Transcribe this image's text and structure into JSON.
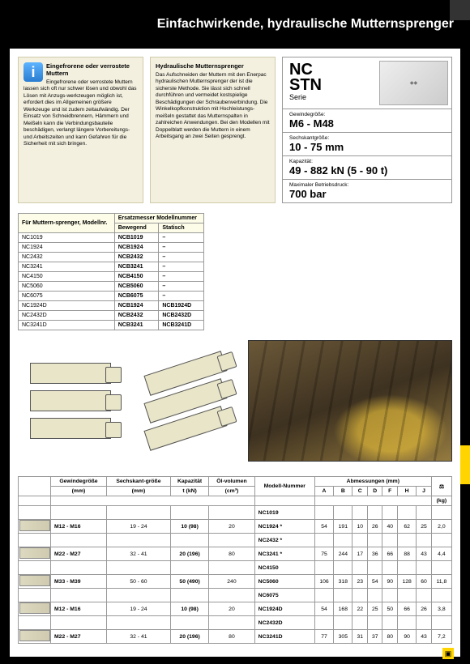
{
  "header": {
    "title": "Einfachwirkende, hydraulische Mutternsprenger"
  },
  "infoBox": {
    "heading": "Eingefrorene oder verrostete Muttern",
    "body": "Eingefrorene oder verrostete Muttern lassen sich oft nur schwer lösen und obwohl das Lösen mit Anzugs-werkzeugen möglich ist, erfordert dies im Allgemeinen größere Werkzeuge und ist zudem zeitaufwändig. Der Einsatz von Schneidbrennern, Hämmern und Meißeln kann die Verbindungsbauteile beschädigen, verlangt längere Vorbereitungs- und Arbeitszeiten und kann Gefahren für die Sicherheit mit sich bringen."
  },
  "hydraulicBox": {
    "heading": "Hydraulische Mutternsprenger",
    "body": "Das Aufschneiden der Muttern mit den Enerpac hydraulischen Mutternsprenger der ist die sicherste Methode. Sie lässt sich schnell durchführen und vermeidet kostspielige Beschädigungen der Schraubenverbindung. Die Winkelkopfkonstruktion mit Hochleistungs-meißeln gestattet das Mutternspalten in zahlreichen Anwendungen. Bei den Modellen mit Doppelblatt werden die Muttern in einem Arbeitsgang an zwei Seiten gesprengt."
  },
  "spec": {
    "series1": "NC",
    "series2": "STN",
    "seriesSub": "Serie",
    "rows": [
      {
        "label": "Gewindegröße:",
        "value": "M6 - M48"
      },
      {
        "label": "Sechskantgröße:",
        "value": "10 - 75 mm"
      },
      {
        "label": "Kapazität:",
        "value": "49 - 882 kN (5 - 90 t)"
      },
      {
        "label": "Maximaler Betriebsdruck:",
        "value": "700 bar"
      }
    ]
  },
  "modelTable": {
    "h1": "Für Muttern-sprenger, Modellnr.",
    "h2": "Ersatzmesser Modellnummer",
    "sub1": "Bewegend",
    "sub2": "Statisch",
    "rows": [
      [
        "NC1019",
        "NCB1019",
        "–"
      ],
      [
        "NC1924",
        "NCB1924",
        "–"
      ],
      [
        "NC2432",
        "NCB2432",
        "–"
      ],
      [
        "NC3241",
        "NCB3241",
        "–"
      ],
      [
        "NC4150",
        "NCB4150",
        "–"
      ],
      [
        "NC5060",
        "NCB5060",
        "–"
      ],
      [
        "NC6075",
        "NCB6075",
        "–"
      ],
      [
        "NC1924D",
        "NCB1924",
        "NCB1924D"
      ],
      [
        "NC2432D",
        "NCB2432",
        "NCB2432D"
      ],
      [
        "NC3241D",
        "NCB3241",
        "NCB3241D"
      ]
    ]
  },
  "bigTable": {
    "headers": {
      "gewinde": "Gewindegröße",
      "sechs": "Sechskant-größe",
      "kap": "Kapazität",
      "oil": "Öl-volumen",
      "model": "Modell-Nummer",
      "dims": "Abmessungen (mm)",
      "a": "A",
      "b": "B",
      "c": "C",
      "d": "D",
      "f": "F",
      "h": "H",
      "j": "J",
      "unitMm": "(mm)",
      "unitMm2": "(mm)",
      "unitKn": "t (kN)",
      "unitCm": "(cm³)",
      "unitKg": "(kg)"
    },
    "rows": [
      {
        "g": "",
        "s": "",
        "k": "",
        "o": "",
        "m": "NC1019",
        "a": "",
        "b": "",
        "c": "",
        "d": "",
        "f": "",
        "h": "",
        "j": "",
        "kg": ""
      },
      {
        "g": "M12 - M16",
        "s": "19 - 24",
        "k": "10 (98)",
        "o": "20",
        "m": "NC1924 *",
        "a": "54",
        "b": "191",
        "c": "10",
        "d": "26",
        "f": "40",
        "h": "62",
        "j": "25",
        "kg": "2,0"
      },
      {
        "g": "",
        "s": "",
        "k": "",
        "o": "",
        "m": "NC2432 *",
        "a": "",
        "b": "",
        "c": "",
        "d": "",
        "f": "",
        "h": "",
        "j": "",
        "kg": ""
      },
      {
        "g": "M22 - M27",
        "s": "32 - 41",
        "k": "20 (196)",
        "o": "80",
        "m": "NC3241 *",
        "a": "75",
        "b": "244",
        "c": "17",
        "d": "36",
        "f": "66",
        "h": "88",
        "j": "43",
        "kg": "4,4"
      },
      {
        "g": "",
        "s": "",
        "k": "",
        "o": "",
        "m": "NC4150",
        "a": "",
        "b": "",
        "c": "",
        "d": "",
        "f": "",
        "h": "",
        "j": "",
        "kg": ""
      },
      {
        "g": "M33 - M39",
        "s": "50 - 60",
        "k": "50 (490)",
        "o": "240",
        "m": "NC5060",
        "a": "106",
        "b": "318",
        "c": "23",
        "d": "54",
        "f": "90",
        "h": "128",
        "j": "60",
        "kg": "11,8"
      },
      {
        "g": "",
        "s": "",
        "k": "",
        "o": "",
        "m": "NC6075",
        "a": "",
        "b": "",
        "c": "",
        "d": "",
        "f": "",
        "h": "",
        "j": "",
        "kg": ""
      },
      {
        "g": "M12 - M16",
        "s": "19 - 24",
        "k": "10 (98)",
        "o": "20",
        "m": "NC1924D",
        "a": "54",
        "b": "168",
        "c": "22",
        "d": "25",
        "f": "50",
        "h": "66",
        "j": "26",
        "kg": "3,8"
      },
      {
        "g": "",
        "s": "",
        "k": "",
        "o": "",
        "m": "NC2432D",
        "a": "",
        "b": "",
        "c": "",
        "d": "",
        "f": "",
        "h": "",
        "j": "",
        "kg": ""
      },
      {
        "g": "M22 - M27",
        "s": "32 - 41",
        "k": "20 (196)",
        "o": "80",
        "m": "NC3241D",
        "a": "77",
        "b": "305",
        "c": "31",
        "d": "37",
        "f": "80",
        "h": "90",
        "j": "43",
        "kg": "7,2"
      }
    ]
  }
}
